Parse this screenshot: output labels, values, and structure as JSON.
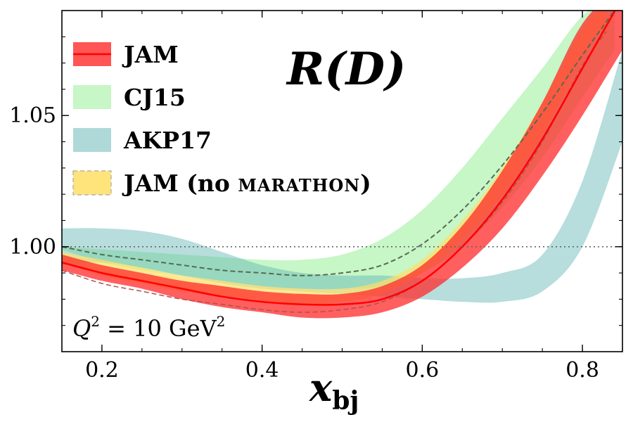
{
  "chart_data": {
    "type": "area",
    "title": "R(D)",
    "xlabel": "x",
    "xlabel_sub": "bj",
    "ylabel": "",
    "xlim": [
      0.15,
      0.85
    ],
    "ylim": [
      0.96,
      1.09
    ],
    "xticks": [
      "0.2",
      "0.4",
      "0.6",
      "0.8"
    ],
    "xtick_values": [
      0.2,
      0.4,
      0.6,
      0.8
    ],
    "yticks": [
      "1.00",
      "1.05"
    ],
    "ytick_values": [
      1.0,
      1.05
    ],
    "reference_line": 1.0,
    "annotation": {
      "base": "Q",
      "exp": "2",
      "mid": " = 10 GeV",
      "exp2": "2"
    },
    "legend_position": "upper-left",
    "series": [
      {
        "name": "CJ15",
        "color": "#90ee90",
        "x": [
          0.15,
          0.2,
          0.25,
          0.3,
          0.35,
          0.4,
          0.45,
          0.5,
          0.55,
          0.6,
          0.65,
          0.7,
          0.75,
          0.8,
          0.84
        ],
        "upper": [
          1.0,
          0.999,
          0.998,
          0.997,
          0.996,
          0.995,
          0.995,
          0.997,
          1.003,
          1.014,
          1.03,
          1.049,
          1.068,
          1.088,
          1.095
        ],
        "lower": [
          0.999,
          0.994,
          0.991,
          0.989,
          0.987,
          0.985,
          0.984,
          0.984,
          0.985,
          0.99,
          1.0,
          1.015,
          1.034,
          1.057,
          1.075
        ],
        "central": [
          1.0,
          0.997,
          0.995,
          0.993,
          0.991,
          0.99,
          0.989,
          0.99,
          0.993,
          1.001,
          1.014,
          1.031,
          1.051,
          1.073,
          1.09
        ]
      },
      {
        "name": "AKP17",
        "color": "#5fb3b3",
        "x": [
          0.15,
          0.2,
          0.25,
          0.3,
          0.35,
          0.4,
          0.45,
          0.5,
          0.55,
          0.6,
          0.65,
          0.7,
          0.75,
          0.8,
          0.85
        ],
        "upper": [
          1.007,
          1.007,
          1.006,
          1.003,
          0.998,
          0.993,
          0.99,
          0.989,
          0.989,
          0.988,
          0.988,
          0.99,
          0.997,
          1.025,
          1.075
        ],
        "lower": [
          0.993,
          0.994,
          0.992,
          0.989,
          0.986,
          0.984,
          0.983,
          0.982,
          0.981,
          0.98,
          0.979,
          0.979,
          0.983,
          1.0,
          1.04
        ]
      },
      {
        "name": "JAM (no marathon)",
        "color": "#ffe066",
        "x": [
          0.15,
          0.2,
          0.25,
          0.3,
          0.35,
          0.4,
          0.45,
          0.5,
          0.55,
          0.6,
          0.65,
          0.7,
          0.75,
          0.8,
          0.83
        ],
        "upper": [
          0.998,
          0.995,
          0.992,
          0.989,
          0.987,
          0.985,
          0.984,
          0.984,
          0.987,
          0.995,
          1.01,
          1.03,
          1.055,
          1.083,
          1.092
        ],
        "lower": [
          0.994,
          0.989,
          0.986,
          0.983,
          0.981,
          0.979,
          0.978,
          0.979,
          0.982,
          0.99,
          1.003,
          1.02,
          1.043,
          1.072,
          1.085
        ],
        "central": [
          0.996,
          0.992,
          0.989,
          0.986,
          0.984,
          0.982,
          0.981,
          0.981,
          0.984,
          0.992,
          1.006,
          1.025,
          1.049,
          1.077,
          1.09
        ]
      },
      {
        "name": "JAM",
        "color": "#ff2a2a",
        "x": [
          0.15,
          0.2,
          0.25,
          0.3,
          0.35,
          0.4,
          0.45,
          0.5,
          0.55,
          0.6,
          0.65,
          0.7,
          0.75,
          0.8,
          0.85
        ],
        "upper": [
          0.997,
          0.993,
          0.99,
          0.987,
          0.985,
          0.983,
          0.982,
          0.982,
          0.985,
          0.993,
          1.008,
          1.029,
          1.055,
          1.085,
          1.1
        ],
        "lower": [
          0.991,
          0.987,
          0.984,
          0.98,
          0.977,
          0.975,
          0.973,
          0.973,
          0.975,
          0.981,
          0.992,
          1.007,
          1.027,
          1.05,
          1.075
        ],
        "central": [
          0.994,
          0.99,
          0.987,
          0.984,
          0.981,
          0.979,
          0.978,
          0.978,
          0.98,
          0.987,
          1.0,
          1.018,
          1.041,
          1.068,
          1.095
        ]
      }
    ],
    "legend": [
      {
        "label": "JAM",
        "swatch_color": "#ff2a2a",
        "line": "solid",
        "line_color": "#ff0000"
      },
      {
        "label": "CJ15",
        "swatch_color": "#90ee90",
        "line": "none",
        "line_color": ""
      },
      {
        "label": "AKP17",
        "swatch_color": "#5fb3b3",
        "line": "none",
        "line_color": ""
      },
      {
        "label": "JAM (no ",
        "label_small": "marathon",
        "label_end": ")",
        "swatch_color": "#ffe066",
        "line": "dashed",
        "line_color": "#888888"
      }
    ]
  }
}
